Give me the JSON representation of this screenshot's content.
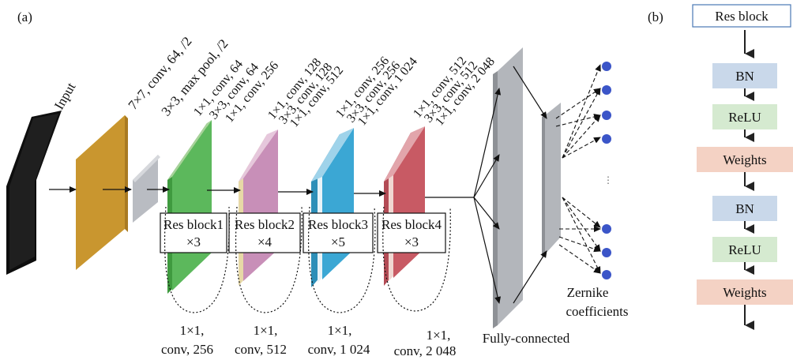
{
  "panel_a_label": "(a)",
  "panel_b_label": "(b)",
  "input_label": "Input",
  "conv1_label": "7×7, conv, 64, /2",
  "pool_label": "3×3, max pool, /2",
  "stage_labels": [
    [
      "1×1, conv, 64",
      "3×3, conv, 64",
      "1×1, conv, 256"
    ],
    [
      "1×1, conv, 128",
      "3×3, conv, 128",
      "1×1, conv, 512"
    ],
    [
      "1×1, conv, 256",
      "3×3, conv, 256",
      "1×1, conv, 1 024"
    ],
    [
      "1×1, conv, 512",
      "3×3, conv, 512",
      "1×1, conv, 2 048"
    ]
  ],
  "res_blocks": [
    {
      "name": "Res block1",
      "repeat": "×3"
    },
    {
      "name": "Res block2",
      "repeat": "×4"
    },
    {
      "name": "Res block3",
      "repeat": "×5"
    },
    {
      "name": "Res block4",
      "repeat": "×3"
    }
  ],
  "shortcuts": [
    {
      "line1": "1×1,",
      "line2": "conv, 256"
    },
    {
      "line1": "1×1,",
      "line2": "conv, 512"
    },
    {
      "line1": "1×1,",
      "line2": "conv, 1 024"
    },
    {
      "line1": "1×1,",
      "line2": "conv, 2 048"
    }
  ],
  "fc_label": "Fully-connected",
  "output_label_line1": "Zernike",
  "output_label_line2": "coefficients",
  "ellipsis": "⋮",
  "colors": {
    "input": "#1a1a1a",
    "conv1": "#c9962f",
    "conv1_top": "#e6d84a",
    "pool": "#b9bcc2",
    "stage1": "#4aa64a",
    "stage2": "#c88fb8",
    "stage3": "#3ba7d4",
    "stage4": "#c85a64",
    "fc": "#b3b6bb",
    "node": "#3b55c8",
    "bn": "#c9d8ea",
    "relu": "#d5ead0",
    "weights": "#f4d2c4",
    "res_block_border": "#4a78b5"
  },
  "block_b": {
    "header": "Res block",
    "items": [
      "BN",
      "ReLU",
      "Weights",
      "BN",
      "ReLU",
      "Weights"
    ]
  }
}
